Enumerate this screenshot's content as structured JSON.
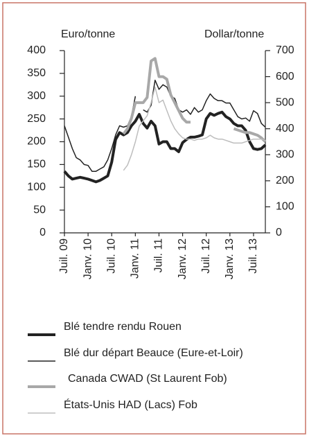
{
  "chart_data": {
    "type": "line",
    "y_label": "Euro/tonne",
    "y2_label": "Dollar/tonne",
    "categories": [
      "Juil. 09",
      null,
      null,
      null,
      null,
      null,
      "Janv. 10",
      null,
      null,
      null,
      null,
      null,
      "Juil. 10",
      null,
      null,
      null,
      null,
      null,
      "Janv. 11",
      null,
      null,
      null,
      null,
      null,
      "Juil. 11",
      null,
      null,
      null,
      null,
      null,
      "Janv. 12",
      null,
      null,
      null,
      null,
      null,
      "Juil. 12",
      null,
      null,
      null,
      null,
      null,
      "Janv. 13",
      null,
      null,
      null,
      null,
      null,
      "Juil. 13",
      null,
      null,
      null
    ],
    "ylim": [
      0,
      400
    ],
    "yticks": [
      0,
      50,
      100,
      150,
      200,
      250,
      300,
      350,
      400
    ],
    "y2lim": [
      0,
      700
    ],
    "y2ticks": [
      0,
      100,
      200,
      300,
      400,
      500,
      600,
      700
    ],
    "series": [
      {
        "name": "Blé tendre rendu Rouen",
        "color": "#222222",
        "line_width": 4,
        "values": [
          135,
          125,
          118,
          120,
          122,
          120,
          118,
          115,
          112,
          115,
          120,
          125,
          155,
          205,
          220,
          215,
          220,
          235,
          245,
          260,
          240,
          230,
          245,
          235,
          195,
          200,
          200,
          185,
          185,
          178,
          198,
          205,
          210,
          210,
          212,
          215,
          250,
          262,
          258,
          262,
          265,
          255,
          250,
          240,
          235,
          235,
          225,
          200,
          185,
          183,
          185,
          193
        ]
      },
      {
        "name": "Blé dur départ Beauce (Eure-et-Loir)",
        "color": "#222222",
        "line_width": 1.5,
        "values": [
          235,
          210,
          185,
          165,
          160,
          150,
          148,
          135,
          135,
          140,
          145,
          160,
          185,
          215,
          235,
          232,
          235,
          255,
          300,
          null,
          270,
          265,
          280,
          335,
          315,
          325,
          320,
          300,
          295,
          270,
          265,
          270,
          260,
          275,
          265,
          270,
          290,
          305,
          295,
          290,
          290,
          285,
          285,
          270,
          255,
          250,
          252,
          245,
          268,
          262,
          240,
          232
        ]
      },
      {
        "name": "Canada CWAD (St Laurent Fob)",
        "color": "#a8a8a8",
        "line_width": 4,
        "axis": "y2",
        "values": [
          null,
          null,
          null,
          null,
          null,
          null,
          null,
          null,
          null,
          null,
          null,
          null,
          null,
          null,
          null,
          380,
          400,
          440,
          500,
          500,
          500,
          520,
          660,
          670,
          600,
          600,
          590,
          530,
          500,
          470,
          440,
          425,
          425,
          null,
          null,
          null,
          null,
          null,
          null,
          null,
          null,
          null,
          null,
          400,
          395,
          390,
          385,
          385,
          380,
          375,
          365,
          350
        ]
      },
      {
        "name": "États-Unis HAD (Lacs) Fob",
        "color": "#bdbdbd",
        "line_width": 1.5,
        "axis": "y2",
        "values": [
          null,
          null,
          null,
          null,
          null,
          null,
          null,
          null,
          null,
          null,
          null,
          null,
          null,
          null,
          null,
          240,
          260,
          300,
          350,
          410,
          430,
          450,
          500,
          560,
          500,
          510,
          470,
          430,
          400,
          380,
          365,
          360,
          360,
          355,
          360,
          360,
          365,
          375,
          365,
          360,
          360,
          355,
          350,
          345,
          345,
          345,
          350,
          355,
          360,
          360,
          360,
          355
        ]
      }
    ]
  }
}
